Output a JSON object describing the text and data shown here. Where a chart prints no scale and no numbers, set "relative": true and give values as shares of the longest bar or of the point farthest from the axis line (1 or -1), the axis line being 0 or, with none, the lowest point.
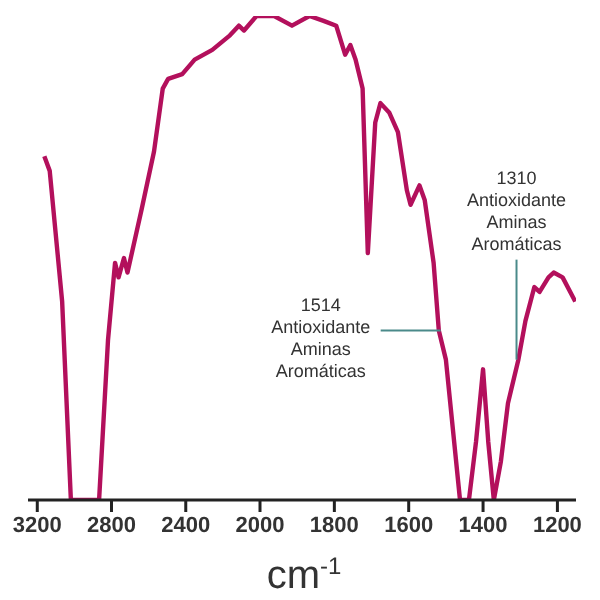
{
  "chart_data": [
    {
      "type": "line",
      "relative": true,
      "x": [
        3162,
        3133,
        3066,
        3019,
        2867,
        2819,
        2781,
        2762,
        2733,
        2714,
        2638,
        2571,
        2524,
        2495,
        2419,
        2352,
        2257,
        2162,
        2114,
        2086,
        2019,
        2000
      ],
      "series": [
        {
          "color": "#b3105c",
          "values": [
            0.71,
            0.68,
            0.41,
            0,
            0,
            0.33,
            0.49,
            0.46,
            0.5,
            0.47,
            0.6,
            0.72,
            0.85,
            0.87,
            0.88,
            0.91,
            0.93,
            0.96,
            0.98,
            0.97,
            1,
            1
          ]
        }
      ],
      "xlim": [
        3250,
        2000
      ],
      "xticks": [
        3200,
        2800,
        2400
      ],
      "grid": false,
      "legend": false,
      "marker": "none",
      "line_style": "solid"
    },
    {
      "type": "line",
      "relative": true,
      "xlabel": "cm$^{-1}$",
      "x": [
        2000,
        1962,
        1914,
        1867,
        1829,
        1795,
        1771,
        1757,
        1743,
        1724,
        1710,
        1690,
        1676,
        1652,
        1629,
        1605,
        1595,
        1571,
        1557,
        1533,
        1519,
        1500,
        1462,
        1438,
        1419,
        1400,
        1386,
        1371,
        1352,
        1333,
        1305,
        1286,
        1262,
        1248,
        1224,
        1210,
        1186,
        1152
      ],
      "series": [
        {
          "color": "#b3105c",
          "values": [
            1,
            1,
            0.98,
            1,
            0.99,
            0.98,
            0.92,
            0.94,
            0.91,
            0.85,
            0.51,
            0.78,
            0.82,
            0.8,
            0.76,
            0.64,
            0.61,
            0.65,
            0.62,
            0.49,
            0.35,
            0.29,
            0,
            0,
            0.12,
            0.27,
            0.12,
            0,
            0.08,
            0.2,
            0.29,
            0.37,
            0.44,
            0.43,
            0.46,
            0.47,
            0.46,
            0.41
          ]
        }
      ],
      "xlim": [
        2000,
        1150
      ],
      "xticks": [
        2000,
        1800,
        1600,
        1400,
        1200
      ],
      "annotations": [
        {
          "text": "1514\nAntioxidante\nAminas\nAromáticas",
          "x": 1514,
          "y": 0.35
        },
        {
          "text": "1310\nAntioxidante\nAminas\nAromáticas",
          "x": 1310,
          "y": 0.29
        }
      ],
      "grid": false,
      "legend": false,
      "marker": "none",
      "line_style": "solid"
    }
  ]
}
